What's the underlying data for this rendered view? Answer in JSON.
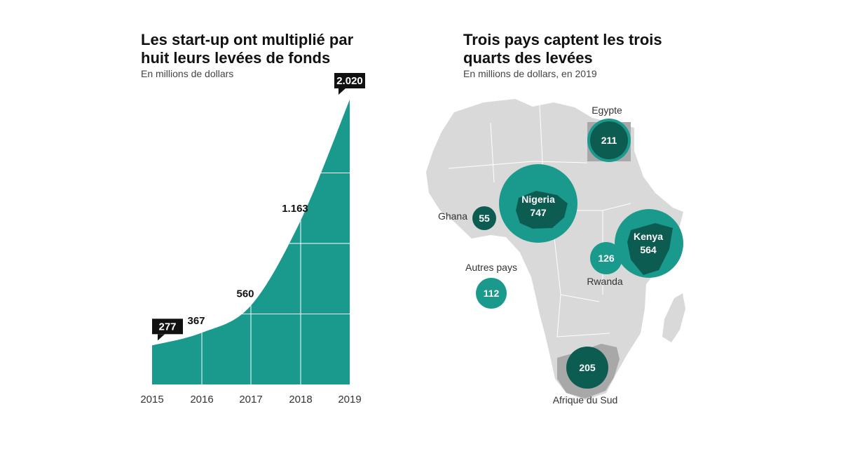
{
  "chart_data": [
    {
      "type": "area",
      "title": "Les start-up ont multiplié par huit leurs levées de fonds",
      "subtitle": "En millions de dollars",
      "x": [
        "2015",
        "2016",
        "2017",
        "2018",
        "2019"
      ],
      "values": [
        277,
        367,
        560,
        1163,
        2020
      ],
      "value_labels": [
        "277",
        "367",
        "560",
        "1.163",
        "2.020"
      ],
      "ylim": [
        0,
        2020
      ],
      "grid": true,
      "color": "#1a9a8c"
    },
    {
      "type": "bubble-map",
      "title": "Trois pays captent les trois quarts des levées",
      "subtitle": "En millions de dollars, en 2019",
      "items": [
        {
          "name": "Egypte",
          "value": 211,
          "label": "211"
        },
        {
          "name": "Nigeria",
          "value": 747,
          "label": "747"
        },
        {
          "name": "Ghana",
          "value": 55,
          "label": "55"
        },
        {
          "name": "Kenya",
          "value": 564,
          "label": "564"
        },
        {
          "name": "Rwanda",
          "value": 126,
          "label": "126"
        },
        {
          "name": "Autres pays",
          "value": 112,
          "label": "112"
        },
        {
          "name": "Afrique du Sud",
          "value": 205,
          "label": "205"
        }
      ],
      "colors": {
        "dark": "#0d5c52",
        "mid": "#1a9a8c",
        "land": "#d9d9d9",
        "land_dark": "#a8a8a8"
      }
    }
  ]
}
